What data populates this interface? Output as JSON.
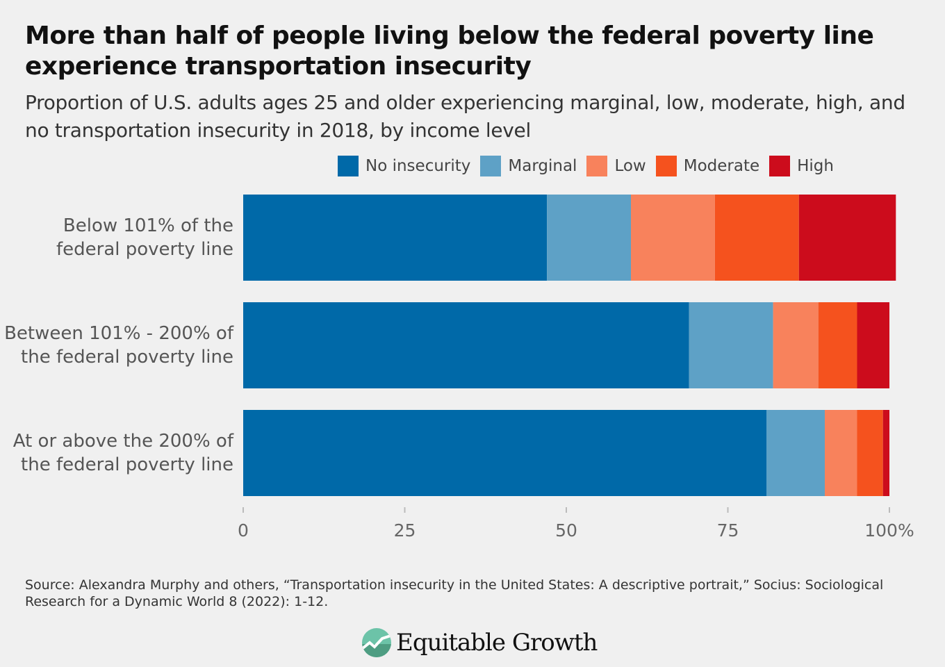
{
  "title": "More than half of people living below the federal poverty line experience transportation insecurity",
  "subtitle": "Proportion of U.S. adults ages 25 and older experiencing marginal, low, moderate, high, and no transportation insecurity in 2018, by income level",
  "source": "Source: Alexandra Murphy and others, “Transportation insecurity in the United States: A descriptive portrait,” Socius: Sociological Research for a Dynamic World 8 (2022): 1-12.",
  "logo_text": "Equitable Growth",
  "chart_data": {
    "type": "bar",
    "orientation": "horizontal-stacked",
    "categories": [
      "Below 101% of the federal poverty line",
      "Between 101% - 200% of the federal poverty line",
      "At or above the 200% of the federal poverty line"
    ],
    "series": [
      {
        "name": "No insecurity",
        "color": "#0069a8",
        "values": [
          47,
          69,
          81
        ]
      },
      {
        "name": "Marginal",
        "color": "#5ea1c6",
        "values": [
          13,
          13,
          9
        ]
      },
      {
        "name": "Low",
        "color": "#f8825c",
        "values": [
          13,
          7,
          5
        ]
      },
      {
        "name": "Moderate",
        "color": "#f5521e",
        "values": [
          13,
          6,
          4
        ]
      },
      {
        "name": "High",
        "color": "#cc0c1c",
        "values": [
          15,
          5,
          1
        ]
      }
    ],
    "xlim": [
      0,
      100
    ],
    "xticks": [
      "0",
      "25",
      "50",
      "75",
      "100%"
    ],
    "xtick_values": [
      0,
      25,
      50,
      75,
      100
    ],
    "legend": "top",
    "grid": false
  }
}
